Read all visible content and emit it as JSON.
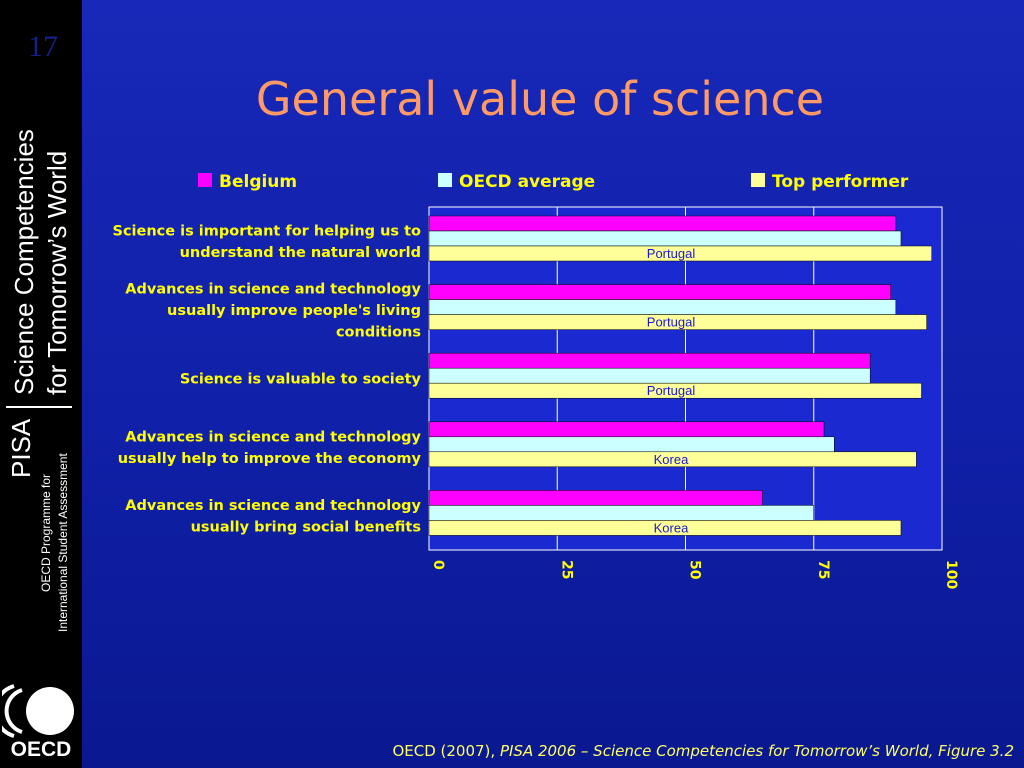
{
  "slide": {
    "number": "17",
    "title": "General value of science",
    "sidebar_line1": "Science Competencies",
    "sidebar_line2": "for Tomorrow’s World",
    "sidebar_pisa": "PISA",
    "sidebar_sub1": "OECD Programme for",
    "sidebar_sub2": "International Student Assessment",
    "logo_text": "OECD",
    "footer_plain": "OECD (2007), ",
    "footer_italic": "PISA 2006 – Science Competencies for Tomorrow’s World, Figure 3.2"
  },
  "colors": {
    "belgium": "#ff00ff",
    "oecd_average": "#ccffff",
    "top_performer": "#ffff99",
    "axis_text": "#ffff00",
    "annotation_text": "#1a1acc"
  },
  "chart_data": {
    "type": "bar",
    "orientation": "horizontal",
    "categories": [
      [
        "Science is important for helping us to",
        "understand the natural world"
      ],
      [
        "Advances in science and technology",
        "usually improve people's living",
        "conditions"
      ],
      [
        "Science is valuable to society"
      ],
      [
        "Advances in science and technology",
        "usually help to improve the economy"
      ],
      [
        "Advances in science and technology",
        "usually bring social benefits"
      ]
    ],
    "series": [
      {
        "name": "Belgium",
        "values": [
          91,
          90,
          86,
          77,
          65
        ]
      },
      {
        "name": "OECD average",
        "values": [
          92,
          91,
          86,
          79,
          75
        ]
      },
      {
        "name": "Top performer",
        "values": [
          98,
          97,
          96,
          95,
          92
        ]
      }
    ],
    "top_performer_labels": [
      "Portugal",
      "Portugal",
      "Portugal",
      "Korea",
      "Korea"
    ],
    "xlim": [
      0,
      100
    ],
    "xticks": [
      "0",
      "25",
      "50",
      "75",
      "100"
    ],
    "grid": "vertical",
    "legend": "top"
  }
}
